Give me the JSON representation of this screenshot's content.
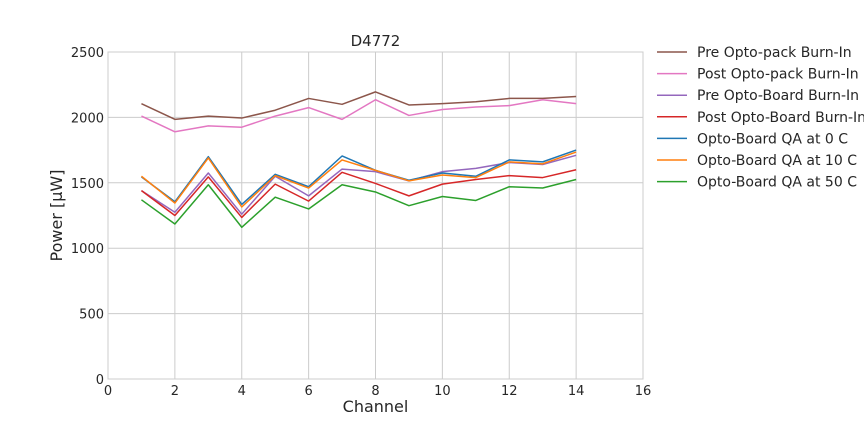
{
  "chart_data": {
    "type": "line",
    "title": "D4772",
    "xlabel": "Channel",
    "ylabel": "Power [μW]",
    "xlim": [
      0,
      16
    ],
    "ylim": [
      0,
      2500
    ],
    "xticks": [
      0,
      2,
      4,
      6,
      8,
      10,
      12,
      14,
      16
    ],
    "yticks": [
      0,
      500,
      1000,
      1500,
      2000,
      2500
    ],
    "grid": true,
    "legend_position": "outside-right-top",
    "x": [
      1,
      2,
      3,
      4,
      5,
      6,
      7,
      8,
      9,
      10,
      11,
      12,
      13,
      14
    ],
    "series": [
      {
        "name": "Pre Opto-pack Burn-In",
        "color": "#8c564b",
        "values": [
          2105,
          1985,
          2010,
          1995,
          2055,
          2145,
          2100,
          2195,
          2095,
          2105,
          2120,
          2145,
          2145,
          2160
        ]
      },
      {
        "name": "Post Opto-pack Burn-In",
        "color": "#e377c2",
        "values": [
          2010,
          1890,
          1935,
          1925,
          2010,
          2075,
          1985,
          2135,
          2015,
          2060,
          2080,
          2090,
          2135,
          2105
        ]
      },
      {
        "name": "Pre Opto-Board Burn-In",
        "color": "#9467bd",
        "values": [
          1440,
          1275,
          1575,
          1260,
          1550,
          1400,
          1605,
          1585,
          1515,
          1585,
          1610,
          1655,
          1640,
          1710
        ]
      },
      {
        "name": "Post Opto-Board Burn-In",
        "color": "#d62728",
        "values": [
          1440,
          1250,
          1545,
          1235,
          1490,
          1360,
          1580,
          1495,
          1400,
          1490,
          1525,
          1555,
          1540,
          1600
        ]
      },
      {
        "name": "Opto-Board QA at 0 C",
        "color": "#1f77b4",
        "values": [
          1545,
          1355,
          1700,
          1335,
          1565,
          1470,
          1705,
          1595,
          1520,
          1575,
          1550,
          1675,
          1660,
          1750
        ]
      },
      {
        "name": "Opto-Board QA at 10 C",
        "color": "#ff7f0e",
        "values": [
          1550,
          1345,
          1690,
          1315,
          1555,
          1460,
          1675,
          1595,
          1515,
          1560,
          1540,
          1660,
          1645,
          1735
        ]
      },
      {
        "name": "Opto-Board QA at 50 C",
        "color": "#2ca02c",
        "values": [
          1370,
          1185,
          1485,
          1160,
          1390,
          1300,
          1485,
          1430,
          1325,
          1395,
          1365,
          1470,
          1460,
          1525
        ]
      }
    ]
  }
}
